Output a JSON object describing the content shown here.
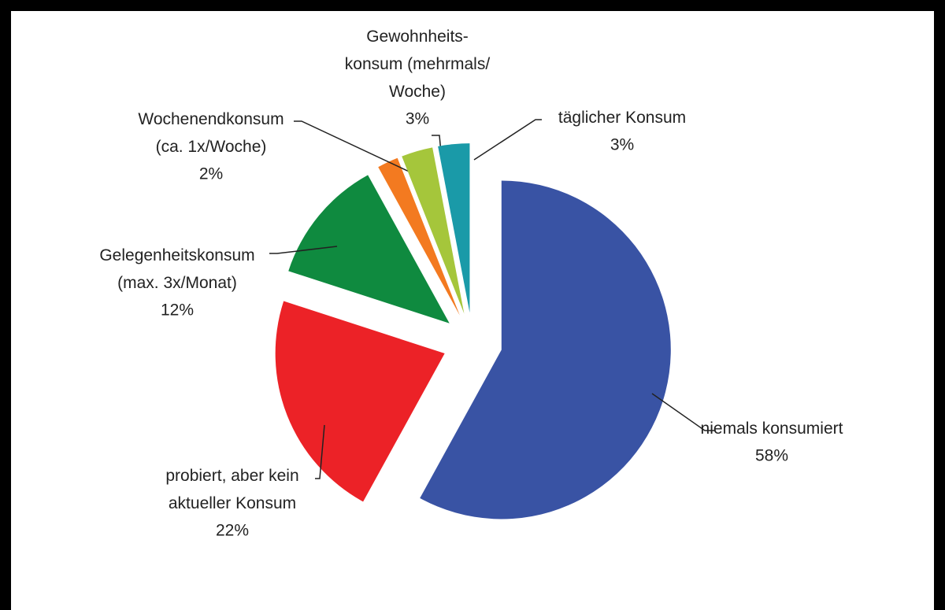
{
  "chart_data": {
    "type": "pie",
    "categories": [
      "niemals konsumiert",
      "probiert, aber kein\naktueller Konsum",
      "Gelegenheitskonsum\n(max. 3x/Monat)",
      "Wochenendkonsum\n(ca. 1x/Woche)",
      "Gewohnheits-\nkonsum (mehrmals/\nWoche)",
      "täglicher Konsum"
    ],
    "values": [
      58,
      22,
      12,
      2,
      3,
      3
    ],
    "value_labels": [
      "58%",
      "22%",
      "12%",
      "2%",
      "3%",
      "3%"
    ],
    "colors": [
      "#3953a4",
      "#ec2227",
      "#0f8a3f",
      "#f37a20",
      "#a5c63b",
      "#1a9aa8"
    ]
  }
}
